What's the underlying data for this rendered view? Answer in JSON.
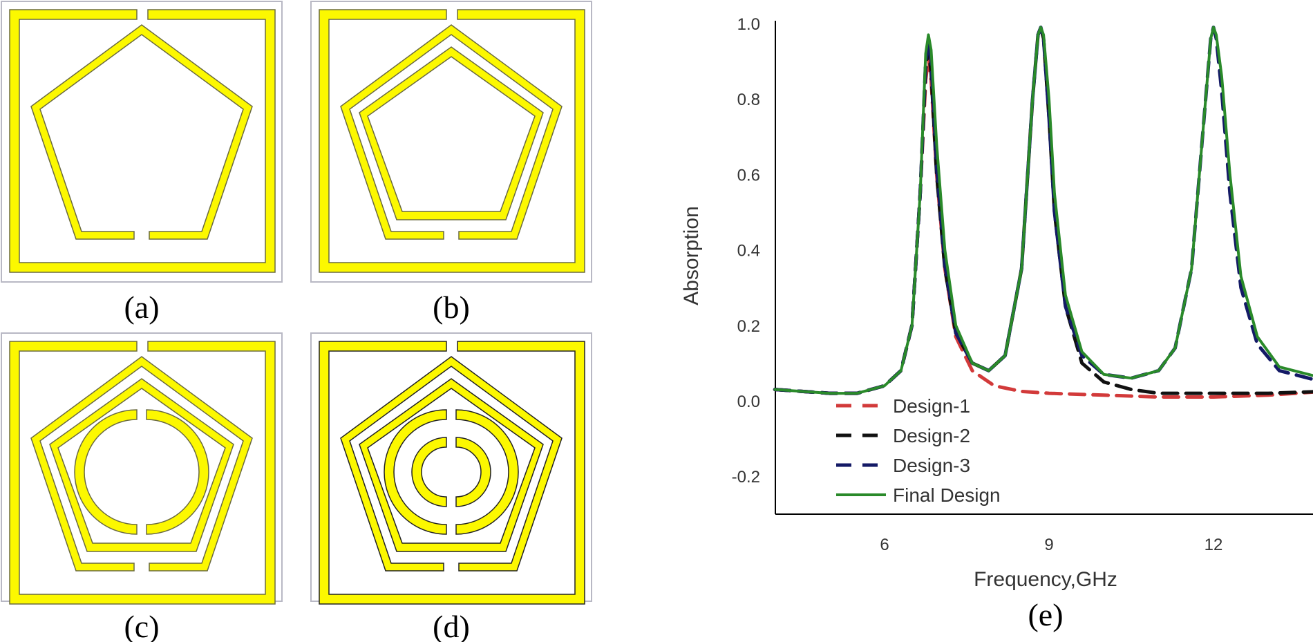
{
  "colors": {
    "metal": "#fcf800",
    "metal_edge": "#6a6a40",
    "frame": "#b8b8c4",
    "d1": "#d23a3a",
    "d2": "#111111",
    "d3": "#141a66",
    "final": "#2a8a2a"
  },
  "panels": {
    "a": {
      "label": "(a)",
      "rings": 1,
      "circles": 0
    },
    "b": {
      "label": "(b)",
      "rings": 2,
      "circles": 0
    },
    "c": {
      "label": "(c)",
      "rings": 2,
      "circles": 1
    },
    "d": {
      "label": "(d)",
      "rings": 2,
      "circles": 2
    }
  },
  "chart_data": {
    "type": "line",
    "panel_label": "(e)",
    "xlabel": "Frequency,GHz",
    "ylabel": "Absorption",
    "xlim": [
      4.0,
      14.0
    ],
    "ylim": [
      -0.3,
      1.0
    ],
    "xticks": [
      "6",
      "9",
      "12"
    ],
    "yticks": [
      "-0.2",
      "0.0",
      "0.2",
      "0.4",
      "0.6",
      "0.8",
      "1.0"
    ],
    "legend": [
      "Design-1",
      "Design-2",
      "Design-3",
      "Final Design"
    ],
    "legend_position": "bottom-left",
    "series": [
      {
        "name": "Design-1",
        "style": "dashed",
        "x": [
          4.0,
          5.0,
          5.5,
          6.0,
          6.3,
          6.5,
          6.65,
          6.75,
          6.8,
          6.85,
          6.95,
          7.1,
          7.3,
          7.6,
          8.0,
          8.5,
          9.0,
          10.0,
          11.0,
          12.0,
          13.0,
          14.0
        ],
        "y": [
          0.03,
          0.02,
          0.02,
          0.04,
          0.08,
          0.2,
          0.55,
          0.85,
          0.91,
          0.85,
          0.6,
          0.35,
          0.17,
          0.08,
          0.04,
          0.025,
          0.02,
          0.015,
          0.01,
          0.01,
          0.015,
          0.025
        ]
      },
      {
        "name": "Design-2",
        "style": "dashed",
        "x": [
          4.0,
          5.0,
          5.5,
          6.0,
          6.3,
          6.5,
          6.65,
          6.75,
          6.8,
          6.85,
          6.95,
          7.1,
          7.3,
          7.6,
          7.9,
          8.2,
          8.5,
          8.7,
          8.8,
          8.85,
          8.9,
          9.0,
          9.1,
          9.3,
          9.6,
          10.0,
          10.5,
          11.0,
          12.0,
          13.0,
          14.0
        ],
        "y": [
          0.03,
          0.02,
          0.02,
          0.04,
          0.08,
          0.2,
          0.55,
          0.88,
          0.93,
          0.87,
          0.6,
          0.35,
          0.18,
          0.1,
          0.08,
          0.12,
          0.35,
          0.8,
          0.97,
          0.99,
          0.96,
          0.75,
          0.5,
          0.25,
          0.1,
          0.05,
          0.03,
          0.02,
          0.02,
          0.02,
          0.025
        ]
      },
      {
        "name": "Design-3",
        "style": "dashed",
        "x": [
          4.0,
          5.0,
          5.5,
          6.0,
          6.3,
          6.5,
          6.65,
          6.75,
          6.8,
          6.85,
          6.95,
          7.1,
          7.3,
          7.6,
          7.9,
          8.2,
          8.5,
          8.7,
          8.8,
          8.85,
          8.9,
          9.0,
          9.1,
          9.3,
          9.6,
          10.0,
          10.5,
          11.0,
          11.3,
          11.6,
          11.8,
          11.95,
          12.0,
          12.05,
          12.15,
          12.3,
          12.5,
          12.8,
          13.2,
          14.0
        ],
        "y": [
          0.03,
          0.02,
          0.02,
          0.04,
          0.08,
          0.2,
          0.55,
          0.9,
          0.95,
          0.9,
          0.62,
          0.36,
          0.18,
          0.1,
          0.08,
          0.12,
          0.35,
          0.8,
          0.97,
          0.99,
          0.96,
          0.75,
          0.5,
          0.25,
          0.12,
          0.07,
          0.06,
          0.08,
          0.14,
          0.35,
          0.7,
          0.96,
          0.99,
          0.96,
          0.82,
          0.55,
          0.3,
          0.15,
          0.08,
          0.05
        ]
      },
      {
        "name": "Final Design",
        "style": "solid",
        "x": [
          4.0,
          5.0,
          5.5,
          6.0,
          6.3,
          6.5,
          6.65,
          6.75,
          6.8,
          6.85,
          6.95,
          7.1,
          7.3,
          7.6,
          7.9,
          8.2,
          8.5,
          8.7,
          8.8,
          8.85,
          8.9,
          9.0,
          9.1,
          9.3,
          9.6,
          10.0,
          10.5,
          11.0,
          11.3,
          11.6,
          11.8,
          11.95,
          12.0,
          12.05,
          12.15,
          12.3,
          12.5,
          12.8,
          13.2,
          14.0
        ],
        "y": [
          0.03,
          0.02,
          0.02,
          0.04,
          0.08,
          0.2,
          0.55,
          0.92,
          0.97,
          0.93,
          0.68,
          0.4,
          0.2,
          0.1,
          0.08,
          0.12,
          0.35,
          0.8,
          0.97,
          0.99,
          0.97,
          0.8,
          0.55,
          0.28,
          0.13,
          0.07,
          0.06,
          0.08,
          0.14,
          0.35,
          0.7,
          0.96,
          0.99,
          0.97,
          0.86,
          0.6,
          0.33,
          0.17,
          0.09,
          0.06
        ]
      }
    ]
  }
}
